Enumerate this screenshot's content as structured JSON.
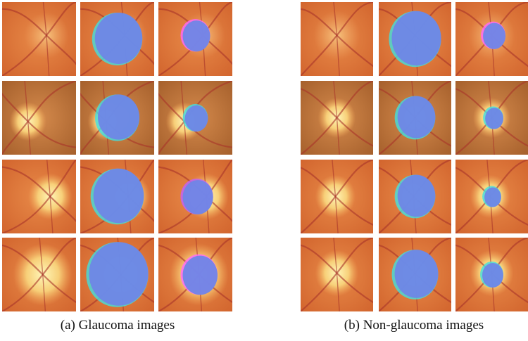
{
  "panels": [
    {
      "caption": "(a) Glaucoma images"
    },
    {
      "caption": "(b) Non-glaucoma images"
    }
  ]
}
